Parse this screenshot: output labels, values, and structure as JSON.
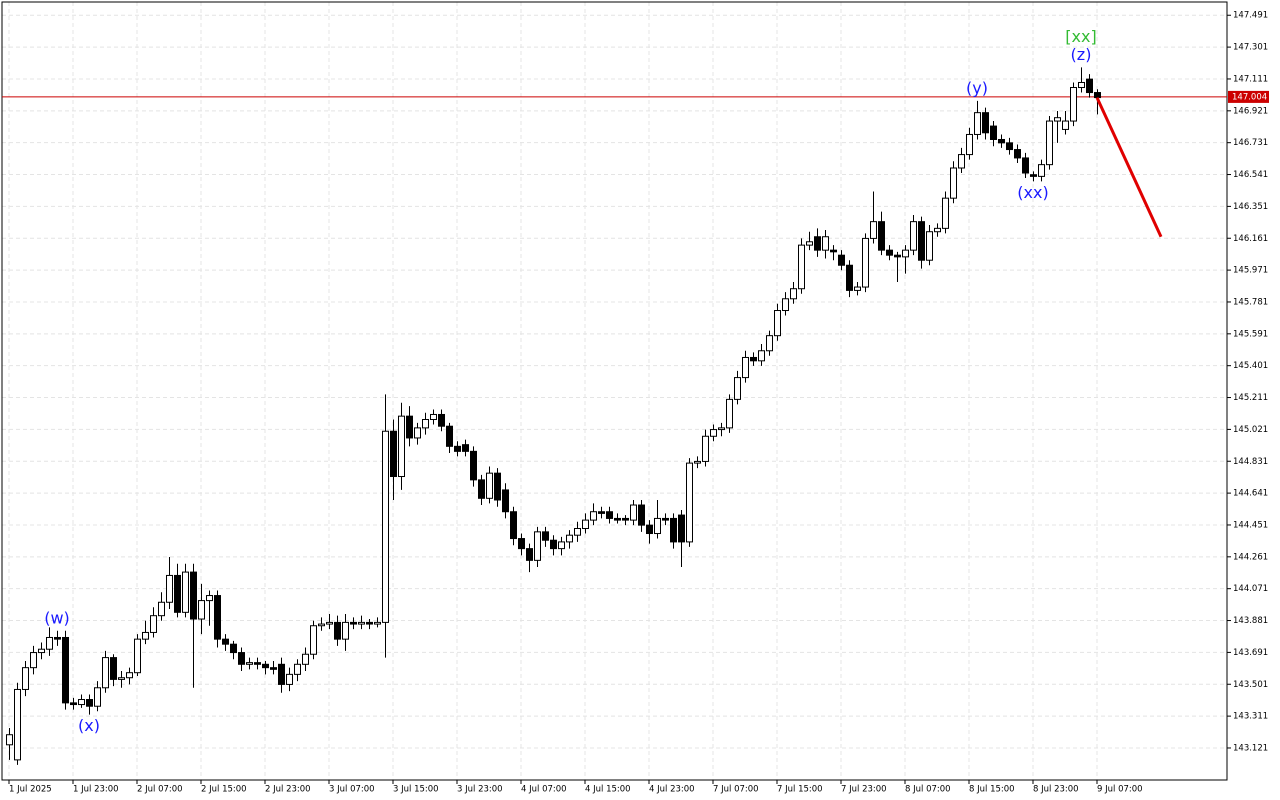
{
  "chart_data": {
    "type": "candlestick",
    "up_color": "#ffffff",
    "down_color": "#000000",
    "outline_color": "#000000",
    "grid": true,
    "open": [
      143.14,
      143.05,
      143.47,
      143.6,
      143.69,
      143.71,
      143.78,
      143.78,
      143.39,
      143.38,
      143.41,
      143.37,
      143.48,
      143.66,
      143.53,
      143.54,
      143.57,
      143.77,
      143.81,
      143.91,
      143.99,
      144.15,
      143.93,
      144.17,
      143.89,
      144.0,
      144.03,
      143.77,
      143.74,
      143.69,
      143.62,
      143.63,
      143.62,
      143.6,
      143.62,
      143.5,
      143.56,
      143.62,
      143.68,
      143.85,
      143.86,
      143.87,
      143.77,
      143.87,
      143.86,
      143.87,
      143.86,
      143.87,
      145.01,
      144.74,
      145.1,
      144.97,
      145.03,
      145.08,
      145.11,
      145.04,
      144.92,
      144.93,
      144.89,
      144.72,
      144.61,
      144.76,
      144.66,
      144.53,
      144.37,
      144.31,
      144.24,
      144.41,
      144.36,
      144.31,
      144.35,
      144.39,
      144.43,
      144.48,
      144.53,
      144.53,
      144.49,
      144.49,
      144.48,
      144.57,
      144.45,
      144.4,
      144.49,
      144.49,
      144.51,
      144.35,
      144.82,
      144.83,
      144.98,
      145.02,
      145.03,
      145.2,
      145.33,
      145.45,
      145.43,
      145.49,
      145.58,
      145.73,
      145.8,
      145.86,
      146.12,
      146.17,
      146.09,
      146.09,
      146.06,
      146.0,
      145.85,
      145.87,
      146.16,
      146.26,
      146.09,
      146.06,
      146.05,
      146.09,
      146.26,
      146.03,
      146.2,
      146.22,
      146.4,
      146.58,
      146.66,
      146.78,
      146.91,
      146.83,
      146.75,
      146.73,
      146.69,
      146.64,
      146.54,
      146.53,
      146.6,
      146.86,
      146.81,
      146.86,
      147.06,
      147.11,
      147.03
    ],
    "high": [
      143.24,
      143.51,
      143.64,
      143.73,
      143.75,
      143.84,
      143.82,
      143.82,
      143.42,
      143.44,
      143.44,
      143.52,
      143.7,
      143.68,
      143.58,
      143.6,
      143.8,
      143.88,
      143.96,
      144.05,
      144.26,
      144.22,
      144.22,
      144.22,
      144.1,
      144.06,
      144.06,
      143.8,
      143.76,
      143.72,
      143.66,
      143.66,
      143.64,
      143.64,
      143.66,
      143.6,
      143.65,
      143.72,
      143.88,
      143.9,
      143.92,
      143.91,
      143.92,
      143.9,
      143.91,
      143.89,
      143.9,
      145.23,
      145.08,
      145.18,
      145.16,
      145.06,
      145.12,
      145.14,
      145.14,
      145.06,
      144.95,
      144.96,
      144.92,
      144.75,
      144.8,
      144.79,
      144.7,
      144.56,
      144.4,
      144.34,
      144.44,
      144.44,
      144.39,
      144.38,
      144.42,
      144.47,
      144.52,
      144.58,
      144.56,
      144.56,
      144.52,
      144.51,
      144.6,
      144.6,
      144.48,
      144.6,
      144.52,
      144.52,
      144.54,
      144.85,
      144.86,
      145.02,
      145.05,
      145.06,
      145.23,
      145.37,
      145.49,
      145.48,
      145.53,
      145.61,
      145.77,
      145.84,
      145.9,
      146.16,
      146.2,
      146.22,
      146.21,
      146.12,
      146.09,
      146.03,
      145.9,
      146.19,
      146.44,
      146.32,
      146.12,
      146.08,
      146.12,
      146.3,
      146.29,
      146.24,
      146.25,
      146.44,
      146.62,
      146.7,
      146.82,
      146.98,
      146.94,
      146.86,
      146.78,
      146.76,
      146.72,
      146.67,
      146.56,
      146.63,
      146.89,
      146.92,
      146.92,
      147.09,
      147.18,
      147.14,
      147.05
    ],
    "low": [
      143.05,
      143.02,
      143.43,
      143.56,
      143.65,
      143.67,
      143.73,
      143.35,
      143.35,
      143.36,
      143.32,
      143.34,
      143.45,
      143.49,
      143.48,
      143.5,
      143.55,
      143.74,
      143.78,
      143.88,
      143.95,
      143.9,
      143.9,
      143.48,
      143.8,
      143.85,
      143.72,
      143.7,
      143.65,
      143.58,
      143.59,
      143.59,
      143.56,
      143.56,
      143.45,
      143.46,
      143.52,
      143.58,
      143.65,
      143.82,
      143.83,
      143.73,
      143.7,
      143.83,
      143.83,
      143.83,
      143.84,
      143.66,
      144.6,
      144.66,
      144.92,
      144.93,
      144.99,
      145.05,
      145.01,
      144.88,
      144.86,
      144.86,
      144.68,
      144.57,
      144.58,
      144.56,
      144.49,
      144.33,
      144.27,
      144.17,
      144.2,
      144.32,
      144.27,
      144.27,
      144.31,
      144.35,
      144.4,
      144.45,
      144.49,
      144.46,
      144.46,
      144.45,
      144.45,
      144.41,
      144.34,
      144.37,
      144.45,
      144.31,
      144.2,
      144.32,
      144.79,
      144.8,
      144.95,
      144.98,
      145.0,
      145.17,
      145.3,
      145.4,
      145.4,
      145.46,
      145.55,
      145.7,
      145.77,
      145.83,
      146.09,
      146.05,
      146.04,
      146.03,
      145.97,
      145.81,
      145.82,
      145.84,
      146.13,
      146.06,
      146.03,
      145.9,
      145.95,
      146.06,
      145.98,
      146.0,
      146.17,
      146.19,
      146.37,
      146.55,
      146.63,
      146.75,
      146.75,
      146.71,
      146.7,
      146.66,
      146.61,
      146.52,
      146.5,
      146.5,
      146.57,
      146.73,
      146.78,
      146.83,
      147.03,
      147.0,
      146.9
    ],
    "close": [
      143.2,
      143.47,
      143.6,
      143.69,
      143.71,
      143.78,
      143.77,
      143.39,
      143.38,
      143.41,
      143.37,
      143.48,
      143.66,
      143.53,
      143.54,
      143.57,
      143.77,
      143.81,
      143.91,
      143.99,
      144.15,
      143.93,
      144.17,
      143.89,
      144.0,
      144.03,
      143.77,
      143.74,
      143.69,
      143.62,
      143.63,
      143.62,
      143.6,
      143.59,
      143.5,
      143.56,
      143.62,
      143.68,
      143.85,
      143.86,
      143.87,
      143.77,
      143.87,
      143.86,
      143.87,
      143.86,
      143.87,
      145.01,
      144.74,
      145.1,
      144.97,
      145.03,
      145.08,
      145.11,
      145.04,
      144.92,
      144.89,
      144.89,
      144.72,
      144.61,
      144.76,
      144.6,
      144.53,
      144.37,
      144.31,
      144.24,
      144.41,
      144.36,
      144.31,
      144.35,
      144.39,
      144.43,
      144.48,
      144.53,
      144.52,
      144.49,
      144.48,
      144.48,
      144.57,
      144.45,
      144.4,
      144.49,
      144.48,
      144.35,
      144.35,
      144.82,
      144.83,
      144.98,
      145.02,
      145.03,
      145.2,
      145.33,
      145.45,
      145.43,
      145.49,
      145.58,
      145.73,
      145.8,
      145.86,
      146.12,
      146.14,
      146.09,
      146.17,
      146.08,
      146.0,
      145.85,
      145.87,
      146.16,
      146.26,
      146.09,
      146.06,
      146.05,
      146.09,
      146.26,
      146.03,
      146.2,
      146.22,
      146.4,
      146.58,
      146.66,
      146.78,
      146.91,
      146.79,
      146.75,
      146.73,
      146.69,
      146.64,
      146.55,
      146.53,
      146.6,
      146.86,
      146.88,
      146.86,
      147.06,
      147.09,
      147.03,
      147.0
    ],
    "xlim": [
      -0.875,
      152.25
    ],
    "xticks": [
      {
        "value": 0,
        "label": "1 Jul 2025"
      },
      {
        "value": 8,
        "label": "1 Jul 23:00"
      },
      {
        "value": 16,
        "label": "2 Jul 07:00"
      },
      {
        "value": 24,
        "label": "2 Jul 15:00"
      },
      {
        "value": 32,
        "label": "2 Jul 23:00"
      },
      {
        "value": 40,
        "label": "3 Jul 07:00"
      },
      {
        "value": 48,
        "label": "3 Jul 15:00"
      },
      {
        "value": 56,
        "label": "3 Jul 23:00"
      },
      {
        "value": 64,
        "label": "4 Jul 07:00"
      },
      {
        "value": 72,
        "label": "4 Jul 15:00"
      },
      {
        "value": 80,
        "label": "4 Jul 23:00"
      },
      {
        "value": 88,
        "label": "7 Jul 07:00"
      },
      {
        "value": 96,
        "label": "7 Jul 15:00"
      },
      {
        "value": 104,
        "label": "7 Jul 23:00"
      },
      {
        "value": 112,
        "label": "8 Jul 07:00"
      },
      {
        "value": 120,
        "label": "8 Jul 15:00"
      },
      {
        "value": 128,
        "label": "8 Jul 23:00"
      },
      {
        "value": 136,
        "label": "9 Jul 07:00"
      }
    ],
    "ylim": [
      142.93,
      147.57
    ],
    "yticks": [
      147.491,
      147.301,
      147.111,
      146.921,
      146.731,
      146.541,
      146.351,
      146.161,
      145.971,
      145.781,
      145.591,
      145.401,
      145.211,
      145.021,
      144.831,
      144.641,
      144.451,
      144.261,
      144.071,
      143.881,
      143.691,
      143.501,
      143.311,
      143.121
    ],
    "current_price": 147.004,
    "current_price_color": "#cc0000",
    "annotations": [
      {
        "text": "(w)",
        "index": 6,
        "place": "above",
        "color": "#1a1aff"
      },
      {
        "text": "(x)",
        "index": 10,
        "place": "below",
        "color": "#1a1aff"
      },
      {
        "text": "(y)",
        "index": 121,
        "place": "above",
        "color": "#1a1aff"
      },
      {
        "text": "(xx)",
        "index": 128,
        "place": "below",
        "color": "#1a1aff"
      },
      {
        "text": "(z)",
        "index": 134,
        "place": "above",
        "color": "#1a1aff"
      },
      {
        "text": "[xx]",
        "index": 134,
        "place": "above",
        "color": "#33bb33"
      }
    ],
    "forecast": {
      "color": "#e00000",
      "x": [
        136,
        144
      ],
      "y": [
        147.0,
        146.17
      ]
    }
  }
}
